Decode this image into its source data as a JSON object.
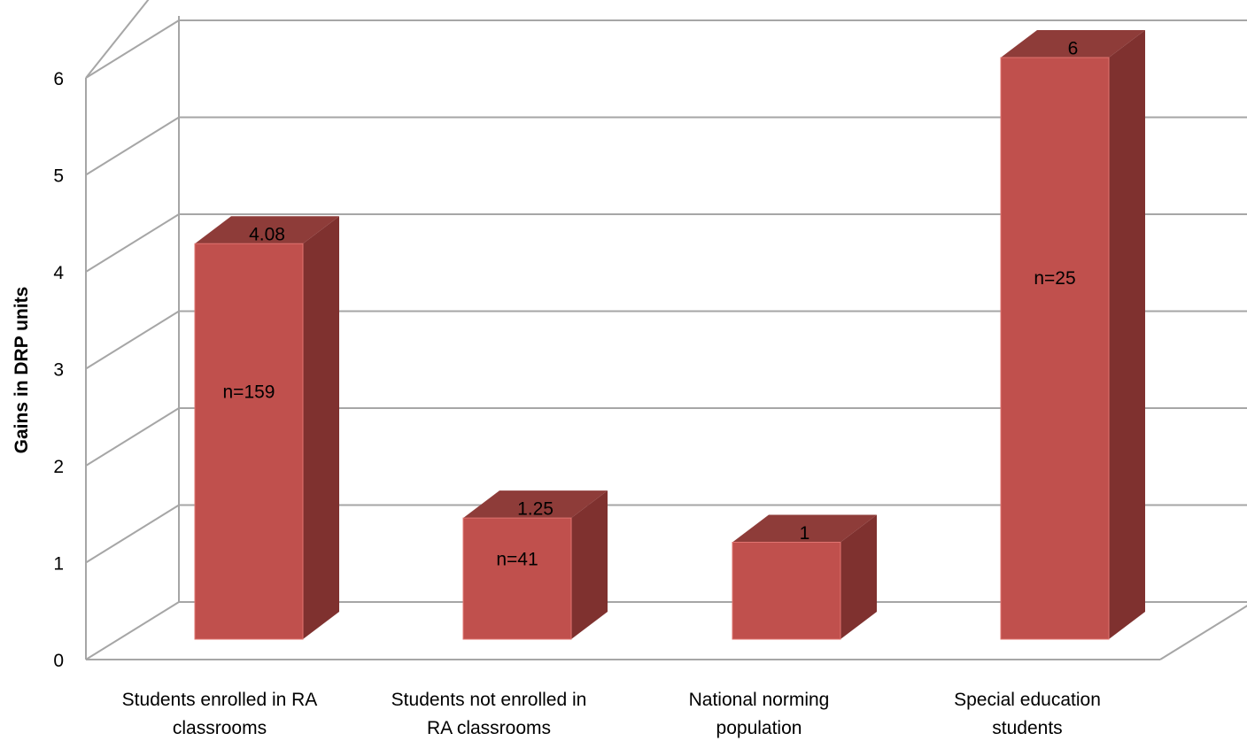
{
  "chart_data": {
    "type": "bar",
    "style": "3d-column",
    "categories": [
      [
        "Students enrolled in RA",
        "classrooms"
      ],
      [
        "Students not enrolled in",
        "RA classrooms"
      ],
      [
        "National norming",
        "population"
      ],
      [
        "Special education",
        "students"
      ]
    ],
    "values": [
      4.08,
      1.25,
      1,
      6
    ],
    "value_labels": [
      "4.08",
      "1.25",
      "1",
      "6"
    ],
    "bar_labels": [
      "n=159",
      "n=41",
      "",
      "n=25"
    ],
    "ylabel": "Gains in DRP units",
    "yticks": [
      "0",
      "1",
      "2",
      "3",
      "4",
      "5",
      "6"
    ],
    "ylim": [
      0,
      6
    ],
    "grid": true,
    "legend": "none",
    "colors": {
      "bar_front": "#c0504d",
      "bar_side": "#7f312f",
      "bar_top": "#8e3c39",
      "bar_edge": "#e07470",
      "grid": "#a6a6a6"
    }
  }
}
